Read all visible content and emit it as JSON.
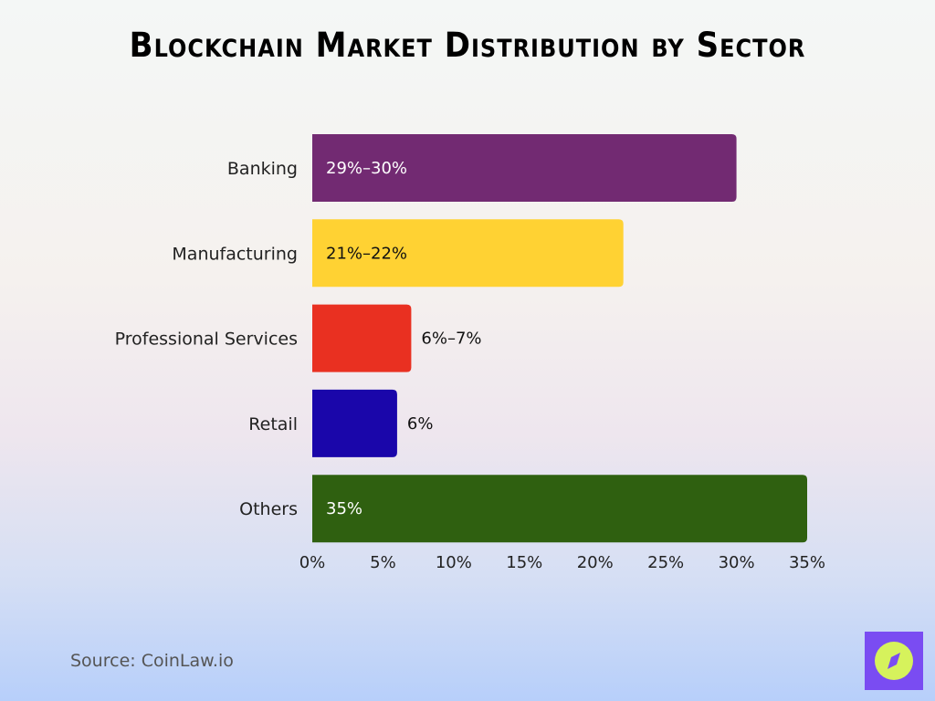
{
  "chart_data": {
    "type": "bar",
    "orientation": "horizontal",
    "title": "Blockchain Market Distribution by Sector",
    "categories": [
      "Banking",
      "Manufacturing",
      "Professional Services",
      "Retail",
      "Others"
    ],
    "values": [
      30,
      22,
      7,
      6,
      35
    ],
    "data_labels": [
      "29%–30%",
      "21%–22%",
      "6%–7%",
      "6%",
      "35%"
    ],
    "colors": [
      "#722a72",
      "#ffd233",
      "#e93021",
      "#1a06aa",
      "#2f6010"
    ],
    "label_colors": [
      "#ffffff",
      "#111111",
      "#111111",
      "#ffffff",
      "#ffffff"
    ],
    "xlim": [
      0,
      35
    ],
    "xticks": [
      0,
      5,
      10,
      15,
      20,
      25,
      30,
      35
    ],
    "xtick_labels": [
      "0%",
      "5%",
      "10%",
      "15%",
      "20%",
      "25%",
      "30%",
      "35%"
    ],
    "xlabel": "",
    "ylabel": "",
    "grid": false
  },
  "source": "Source: CoinLaw.io",
  "logo": {
    "icon": "compass-icon",
    "bg": "#7a4cf2",
    "fg": "#d6f25c"
  }
}
